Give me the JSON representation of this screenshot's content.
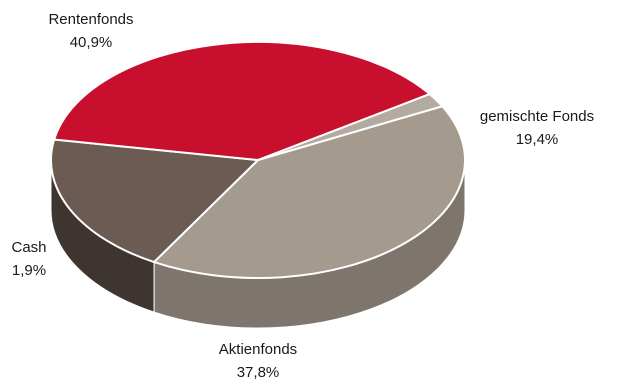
{
  "chart_data": {
    "type": "pie",
    "style": "3d",
    "slices": [
      {
        "label": "Rentenfonds",
        "value_label": "40,9%",
        "value": 40.9,
        "color": "#a49a8e",
        "side_color": "#7e766c"
      },
      {
        "label": "gemischte Fonds",
        "value_label": "19,4%",
        "value": 19.4,
        "color": "#6b5b52",
        "side_color": "#3f3530"
      },
      {
        "label": "Aktienfonds",
        "value_label": "37,8%",
        "value": 37.8,
        "color": "#c8102e",
        "side_color": "#6a0b1c"
      },
      {
        "label": "Cash",
        "value_label": "1,9%",
        "value": 1.9,
        "color": "#b3aba0",
        "side_color": "#8a8278"
      }
    ]
  }
}
